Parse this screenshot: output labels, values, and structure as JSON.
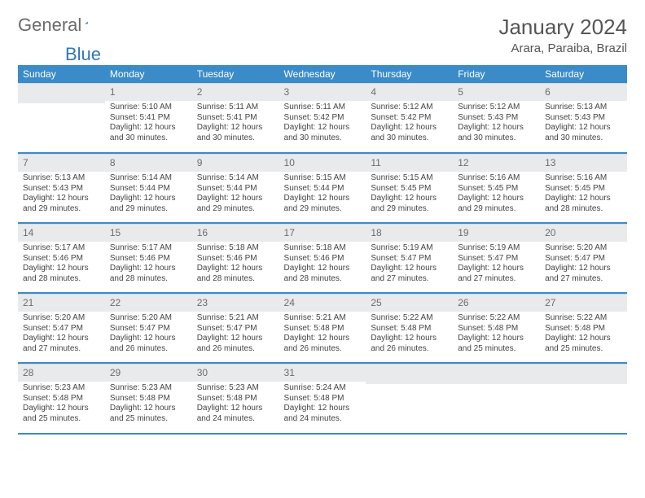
{
  "logo": {
    "text1": "General",
    "text2": "Blue",
    "triangle_color": "#2f77b8"
  },
  "title": "January 2024",
  "location": "Arara, Paraiba, Brazil",
  "colors": {
    "header_bg": "#3b8bc9",
    "header_fg": "#ffffff",
    "daynum_bg": "#e9eaec",
    "rule": "#3b8bc9"
  },
  "weekdays": [
    "Sunday",
    "Monday",
    "Tuesday",
    "Wednesday",
    "Thursday",
    "Friday",
    "Saturday"
  ],
  "weeks": [
    [
      {
        "n": "",
        "lines": []
      },
      {
        "n": "1",
        "lines": [
          "Sunrise: 5:10 AM",
          "Sunset: 5:41 PM",
          "Daylight: 12 hours and 30 minutes."
        ]
      },
      {
        "n": "2",
        "lines": [
          "Sunrise: 5:11 AM",
          "Sunset: 5:41 PM",
          "Daylight: 12 hours and 30 minutes."
        ]
      },
      {
        "n": "3",
        "lines": [
          "Sunrise: 5:11 AM",
          "Sunset: 5:42 PM",
          "Daylight: 12 hours and 30 minutes."
        ]
      },
      {
        "n": "4",
        "lines": [
          "Sunrise: 5:12 AM",
          "Sunset: 5:42 PM",
          "Daylight: 12 hours and 30 minutes."
        ]
      },
      {
        "n": "5",
        "lines": [
          "Sunrise: 5:12 AM",
          "Sunset: 5:43 PM",
          "Daylight: 12 hours and 30 minutes."
        ]
      },
      {
        "n": "6",
        "lines": [
          "Sunrise: 5:13 AM",
          "Sunset: 5:43 PM",
          "Daylight: 12 hours and 30 minutes."
        ]
      }
    ],
    [
      {
        "n": "7",
        "lines": [
          "Sunrise: 5:13 AM",
          "Sunset: 5:43 PM",
          "Daylight: 12 hours and 29 minutes."
        ]
      },
      {
        "n": "8",
        "lines": [
          "Sunrise: 5:14 AM",
          "Sunset: 5:44 PM",
          "Daylight: 12 hours and 29 minutes."
        ]
      },
      {
        "n": "9",
        "lines": [
          "Sunrise: 5:14 AM",
          "Sunset: 5:44 PM",
          "Daylight: 12 hours and 29 minutes."
        ]
      },
      {
        "n": "10",
        "lines": [
          "Sunrise: 5:15 AM",
          "Sunset: 5:44 PM",
          "Daylight: 12 hours and 29 minutes."
        ]
      },
      {
        "n": "11",
        "lines": [
          "Sunrise: 5:15 AM",
          "Sunset: 5:45 PM",
          "Daylight: 12 hours and 29 minutes."
        ]
      },
      {
        "n": "12",
        "lines": [
          "Sunrise: 5:16 AM",
          "Sunset: 5:45 PM",
          "Daylight: 12 hours and 29 minutes."
        ]
      },
      {
        "n": "13",
        "lines": [
          "Sunrise: 5:16 AM",
          "Sunset: 5:45 PM",
          "Daylight: 12 hours and 28 minutes."
        ]
      }
    ],
    [
      {
        "n": "14",
        "lines": [
          "Sunrise: 5:17 AM",
          "Sunset: 5:46 PM",
          "Daylight: 12 hours and 28 minutes."
        ]
      },
      {
        "n": "15",
        "lines": [
          "Sunrise: 5:17 AM",
          "Sunset: 5:46 PM",
          "Daylight: 12 hours and 28 minutes."
        ]
      },
      {
        "n": "16",
        "lines": [
          "Sunrise: 5:18 AM",
          "Sunset: 5:46 PM",
          "Daylight: 12 hours and 28 minutes."
        ]
      },
      {
        "n": "17",
        "lines": [
          "Sunrise: 5:18 AM",
          "Sunset: 5:46 PM",
          "Daylight: 12 hours and 28 minutes."
        ]
      },
      {
        "n": "18",
        "lines": [
          "Sunrise: 5:19 AM",
          "Sunset: 5:47 PM",
          "Daylight: 12 hours and 27 minutes."
        ]
      },
      {
        "n": "19",
        "lines": [
          "Sunrise: 5:19 AM",
          "Sunset: 5:47 PM",
          "Daylight: 12 hours and 27 minutes."
        ]
      },
      {
        "n": "20",
        "lines": [
          "Sunrise: 5:20 AM",
          "Sunset: 5:47 PM",
          "Daylight: 12 hours and 27 minutes."
        ]
      }
    ],
    [
      {
        "n": "21",
        "lines": [
          "Sunrise: 5:20 AM",
          "Sunset: 5:47 PM",
          "Daylight: 12 hours and 27 minutes."
        ]
      },
      {
        "n": "22",
        "lines": [
          "Sunrise: 5:20 AM",
          "Sunset: 5:47 PM",
          "Daylight: 12 hours and 26 minutes."
        ]
      },
      {
        "n": "23",
        "lines": [
          "Sunrise: 5:21 AM",
          "Sunset: 5:47 PM",
          "Daylight: 12 hours and 26 minutes."
        ]
      },
      {
        "n": "24",
        "lines": [
          "Sunrise: 5:21 AM",
          "Sunset: 5:48 PM",
          "Daylight: 12 hours and 26 minutes."
        ]
      },
      {
        "n": "25",
        "lines": [
          "Sunrise: 5:22 AM",
          "Sunset: 5:48 PM",
          "Daylight: 12 hours and 26 minutes."
        ]
      },
      {
        "n": "26",
        "lines": [
          "Sunrise: 5:22 AM",
          "Sunset: 5:48 PM",
          "Daylight: 12 hours and 25 minutes."
        ]
      },
      {
        "n": "27",
        "lines": [
          "Sunrise: 5:22 AM",
          "Sunset: 5:48 PM",
          "Daylight: 12 hours and 25 minutes."
        ]
      }
    ],
    [
      {
        "n": "28",
        "lines": [
          "Sunrise: 5:23 AM",
          "Sunset: 5:48 PM",
          "Daylight: 12 hours and 25 minutes."
        ]
      },
      {
        "n": "29",
        "lines": [
          "Sunrise: 5:23 AM",
          "Sunset: 5:48 PM",
          "Daylight: 12 hours and 25 minutes."
        ]
      },
      {
        "n": "30",
        "lines": [
          "Sunrise: 5:23 AM",
          "Sunset: 5:48 PM",
          "Daylight: 12 hours and 24 minutes."
        ]
      },
      {
        "n": "31",
        "lines": [
          "Sunrise: 5:24 AM",
          "Sunset: 5:48 PM",
          "Daylight: 12 hours and 24 minutes."
        ]
      },
      {
        "n": "",
        "lines": []
      },
      {
        "n": "",
        "lines": []
      },
      {
        "n": "",
        "lines": []
      }
    ]
  ]
}
